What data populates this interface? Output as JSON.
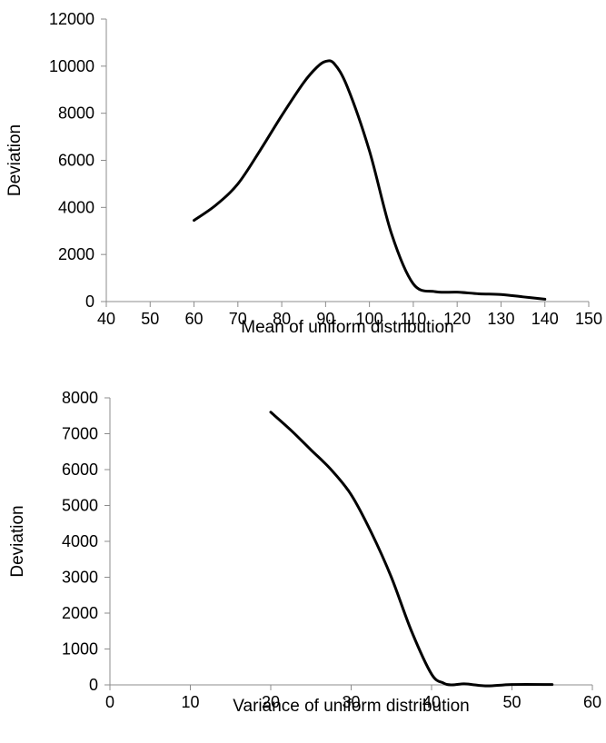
{
  "chart_data": [
    {
      "type": "line",
      "title": "",
      "xlabel": "Mean of uniform distribution",
      "ylabel": "Deviation",
      "xlim": [
        40,
        150
      ],
      "ylim": [
        0,
        12000
      ],
      "x_ticks": [
        "40",
        "50",
        "60",
        "70",
        "80",
        "90",
        "100",
        "110",
        "120",
        "130",
        "140",
        "150"
      ],
      "y_ticks": [
        "0",
        "2000",
        "4000",
        "6000",
        "8000",
        "10000",
        "12000"
      ],
      "grid": false,
      "legend": "none",
      "series": [
        {
          "x": [
            60,
            65,
            70,
            75,
            80,
            85,
            88,
            90,
            92,
            95,
            100,
            105,
            110,
            115,
            120,
            125,
            130,
            135,
            140
          ],
          "y": [
            3450,
            4100,
            5000,
            6400,
            7900,
            9300,
            9950,
            10200,
            10100,
            9100,
            6400,
            2900,
            750,
            420,
            400,
            330,
            300,
            200,
            100
          ]
        }
      ]
    },
    {
      "type": "line",
      "title": "",
      "xlabel": "Variance of uniform distribution",
      "ylabel": "Deviation",
      "xlim": [
        0,
        60
      ],
      "ylim": [
        0,
        8000
      ],
      "x_ticks": [
        "0",
        "10",
        "20",
        "30",
        "40",
        "50",
        "60"
      ],
      "y_ticks": [
        "0",
        "1000",
        "2000",
        "3000",
        "4000",
        "5000",
        "6000",
        "7000",
        "8000"
      ],
      "grid": false,
      "legend": "none",
      "series": [
        {
          "x": [
            20,
            22.5,
            25,
            27.5,
            30,
            32.5,
            35,
            37.5,
            40,
            41.5,
            42.5,
            44,
            45,
            47,
            50,
            55
          ],
          "y": [
            7600,
            7100,
            6550,
            6000,
            5300,
            4250,
            3000,
            1500,
            300,
            50,
            0,
            30,
            10,
            -30,
            10,
            10
          ]
        }
      ]
    }
  ]
}
